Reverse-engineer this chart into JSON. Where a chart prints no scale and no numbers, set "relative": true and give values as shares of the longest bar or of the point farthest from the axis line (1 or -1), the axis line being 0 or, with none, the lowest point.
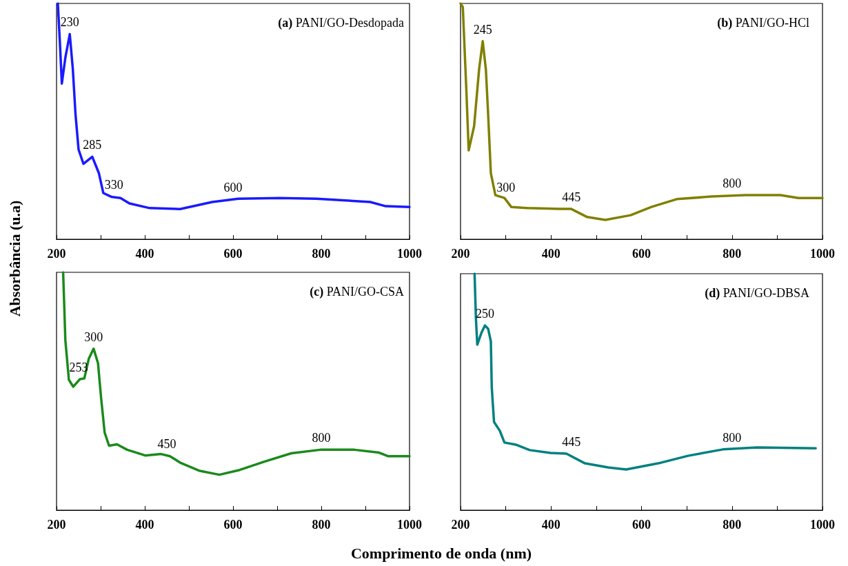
{
  "chart_data": [
    {
      "type": "line",
      "title": "(a) PANI/GO-Desdopada",
      "ylabel": "Absorbância (u.a)",
      "relative": true,
      "tick_labels": "x",
      "color": "#1a1aff",
      "xlim": [
        200,
        1000
      ],
      "xticks": [
        200,
        {
          "value": 300,
          "label": null
        },
        400,
        {
          "value": 500,
          "label": null
        },
        600,
        {
          "value": 700,
          "label": null
        },
        800,
        {
          "value": 900,
          "label": null
        },
        1000
      ],
      "x": [
        203,
        208,
        212,
        220,
        230,
        237,
        243,
        250,
        261,
        281,
        296,
        306,
        324,
        345,
        365,
        411,
        480,
        553,
        612,
        706,
        789,
        911,
        946,
        1000
      ],
      "values": [
        1.0,
        0.82,
        0.66,
        0.77,
        0.87,
        0.72,
        0.53,
        0.38,
        0.32,
        0.35,
        0.28,
        0.196,
        0.18,
        0.175,
        0.152,
        0.132,
        0.128,
        0.158,
        0.172,
        0.175,
        0.172,
        0.158,
        0.14,
        0.137
      ],
      "annotations": [
        {
          "text": "230",
          "x": 230,
          "y": 0.87
        },
        {
          "text": "285",
          "x": 281,
          "y": 0.35
        },
        {
          "text": "330",
          "x": 330,
          "y": 0.18
        },
        {
          "text": "600",
          "x": 600,
          "y": 0.17
        }
      ]
    },
    {
      "type": "line",
      "title": "(b) PANI/GO-HCl",
      "relative": true,
      "tick_labels": "x",
      "color": "#808000",
      "xlim": [
        200,
        1000
      ],
      "xticks": [
        200,
        {
          "value": 300,
          "label": null
        },
        400,
        {
          "value": 500,
          "label": null
        },
        600,
        {
          "value": 700,
          "label": null
        },
        800,
        {
          "value": 900,
          "label": null
        },
        1000
      ],
      "x": [
        200,
        205,
        213,
        218,
        230,
        241,
        249,
        256,
        261,
        267,
        277,
        297,
        312,
        348,
        419,
        444,
        480,
        520,
        576,
        622,
        678,
        754,
        830,
        907,
        947,
        988,
        1000
      ],
      "values": [
        1.0,
        0.985,
        0.625,
        0.377,
        0.48,
        0.72,
        0.84,
        0.72,
        0.53,
        0.28,
        0.187,
        0.175,
        0.137,
        0.132,
        0.129,
        0.129,
        0.094,
        0.082,
        0.102,
        0.137,
        0.17,
        0.181,
        0.187,
        0.187,
        0.175,
        0.175,
        0.175
      ],
      "annotations": [
        {
          "text": "245",
          "x": 249,
          "y": 0.84
        },
        {
          "text": "300",
          "x": 300,
          "y": 0.17
        },
        {
          "text": "445",
          "x": 445,
          "y": 0.13
        },
        {
          "text": "800",
          "x": 800,
          "y": 0.187
        }
      ]
    },
    {
      "type": "line",
      "title": "(c) PANI/GO-CSA",
      "xlabel": "Comprimento de onda (nm)",
      "relative": true,
      "tick_labels": "x",
      "color": "#1a8a1a",
      "xlim": [
        200,
        1000
      ],
      "xticks": [
        200,
        {
          "value": 300,
          "label": null
        },
        400,
        {
          "value": 500,
          "label": null
        },
        600,
        {
          "value": 700,
          "label": null
        },
        800,
        {
          "value": 900,
          "label": null
        },
        1000
      ],
      "x": [
        215,
        220,
        228,
        238,
        253,
        263,
        273,
        284,
        294,
        301,
        309,
        319,
        337,
        360,
        401,
        437,
        457,
        482,
        523,
        569,
        615,
        671,
        732,
        798,
        875,
        931,
        951,
        989,
        1000
      ],
      "values": [
        1.0,
        0.714,
        0.548,
        0.519,
        0.551,
        0.554,
        0.636,
        0.679,
        0.618,
        0.472,
        0.327,
        0.271,
        0.277,
        0.254,
        0.23,
        0.236,
        0.227,
        0.198,
        0.166,
        0.149,
        0.169,
        0.204,
        0.239,
        0.254,
        0.254,
        0.242,
        0.227,
        0.227,
        0.227
      ],
      "annotations": [
        {
          "text": "253",
          "x": 250,
          "y": 0.551
        },
        {
          "text": "300",
          "x": 284,
          "y": 0.679
        },
        {
          "text": "450",
          "x": 450,
          "y": 0.23
        },
        {
          "text": "800",
          "x": 800,
          "y": 0.254
        }
      ]
    },
    {
      "type": "line",
      "title": "(d) PANI/GO-DBSA",
      "relative": true,
      "tick_labels": "x",
      "color": "#008080",
      "xlim": [
        200,
        1000
      ],
      "xticks": [
        200,
        {
          "value": 300,
          "label": null
        },
        400,
        {
          "value": 500,
          "label": null
        },
        600,
        {
          "value": 700,
          "label": null
        },
        800,
        {
          "value": 900,
          "label": null
        },
        1000
      ],
      "x": [
        231,
        234,
        237,
        246,
        254,
        261,
        267,
        269,
        274,
        287,
        297,
        322,
        353,
        399,
        434,
        475,
        526,
        566,
        637,
        703,
        780,
        856,
        985
      ],
      "values": [
        1.0,
        0.81,
        0.7,
        0.749,
        0.781,
        0.767,
        0.714,
        0.519,
        0.373,
        0.335,
        0.286,
        0.277,
        0.254,
        0.242,
        0.239,
        0.198,
        0.181,
        0.172,
        0.198,
        0.23,
        0.257,
        0.265,
        0.262
      ],
      "annotations": [
        {
          "text": "250",
          "x": 254,
          "y": 0.781
        },
        {
          "text": "445",
          "x": 445,
          "y": 0.24
        },
        {
          "text": "800",
          "x": 800,
          "y": 0.257
        }
      ]
    }
  ]
}
